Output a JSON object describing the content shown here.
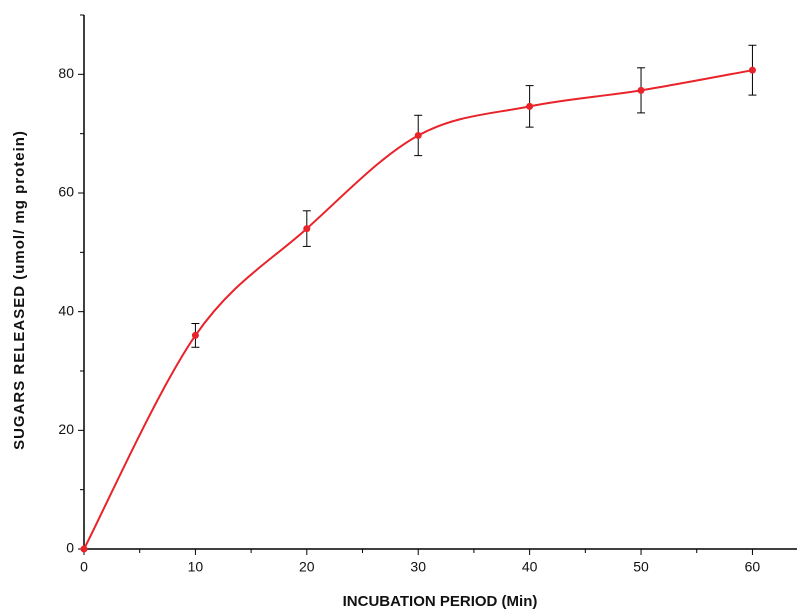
{
  "chart_data": {
    "type": "line",
    "x_label": "INCUBATION PERIOD (Min)",
    "y_label": "SUGARS RELEASED (umol/ mg protein)",
    "x": [
      0,
      10,
      20,
      30,
      40,
      50,
      60
    ],
    "series": [
      {
        "color": "#e8232a",
        "values": [
          0,
          36,
          54,
          69.7,
          74.6,
          77.3,
          80.7
        ],
        "errors": [
          null,
          2,
          3,
          3.4,
          3.5,
          3.8,
          4.2
        ]
      }
    ],
    "xlim": [
      0,
      64
    ],
    "xticks": [
      0,
      10,
      20,
      30,
      40,
      50,
      60
    ],
    "x_minor_ticks": [
      5,
      15,
      25,
      35,
      45,
      55
    ],
    "ylim": [
      0,
      90
    ],
    "yticks": [
      0,
      20,
      40,
      60,
      80
    ],
    "y_minor_ticks": [
      10,
      30,
      50,
      70,
      90
    ],
    "grid": false
  }
}
